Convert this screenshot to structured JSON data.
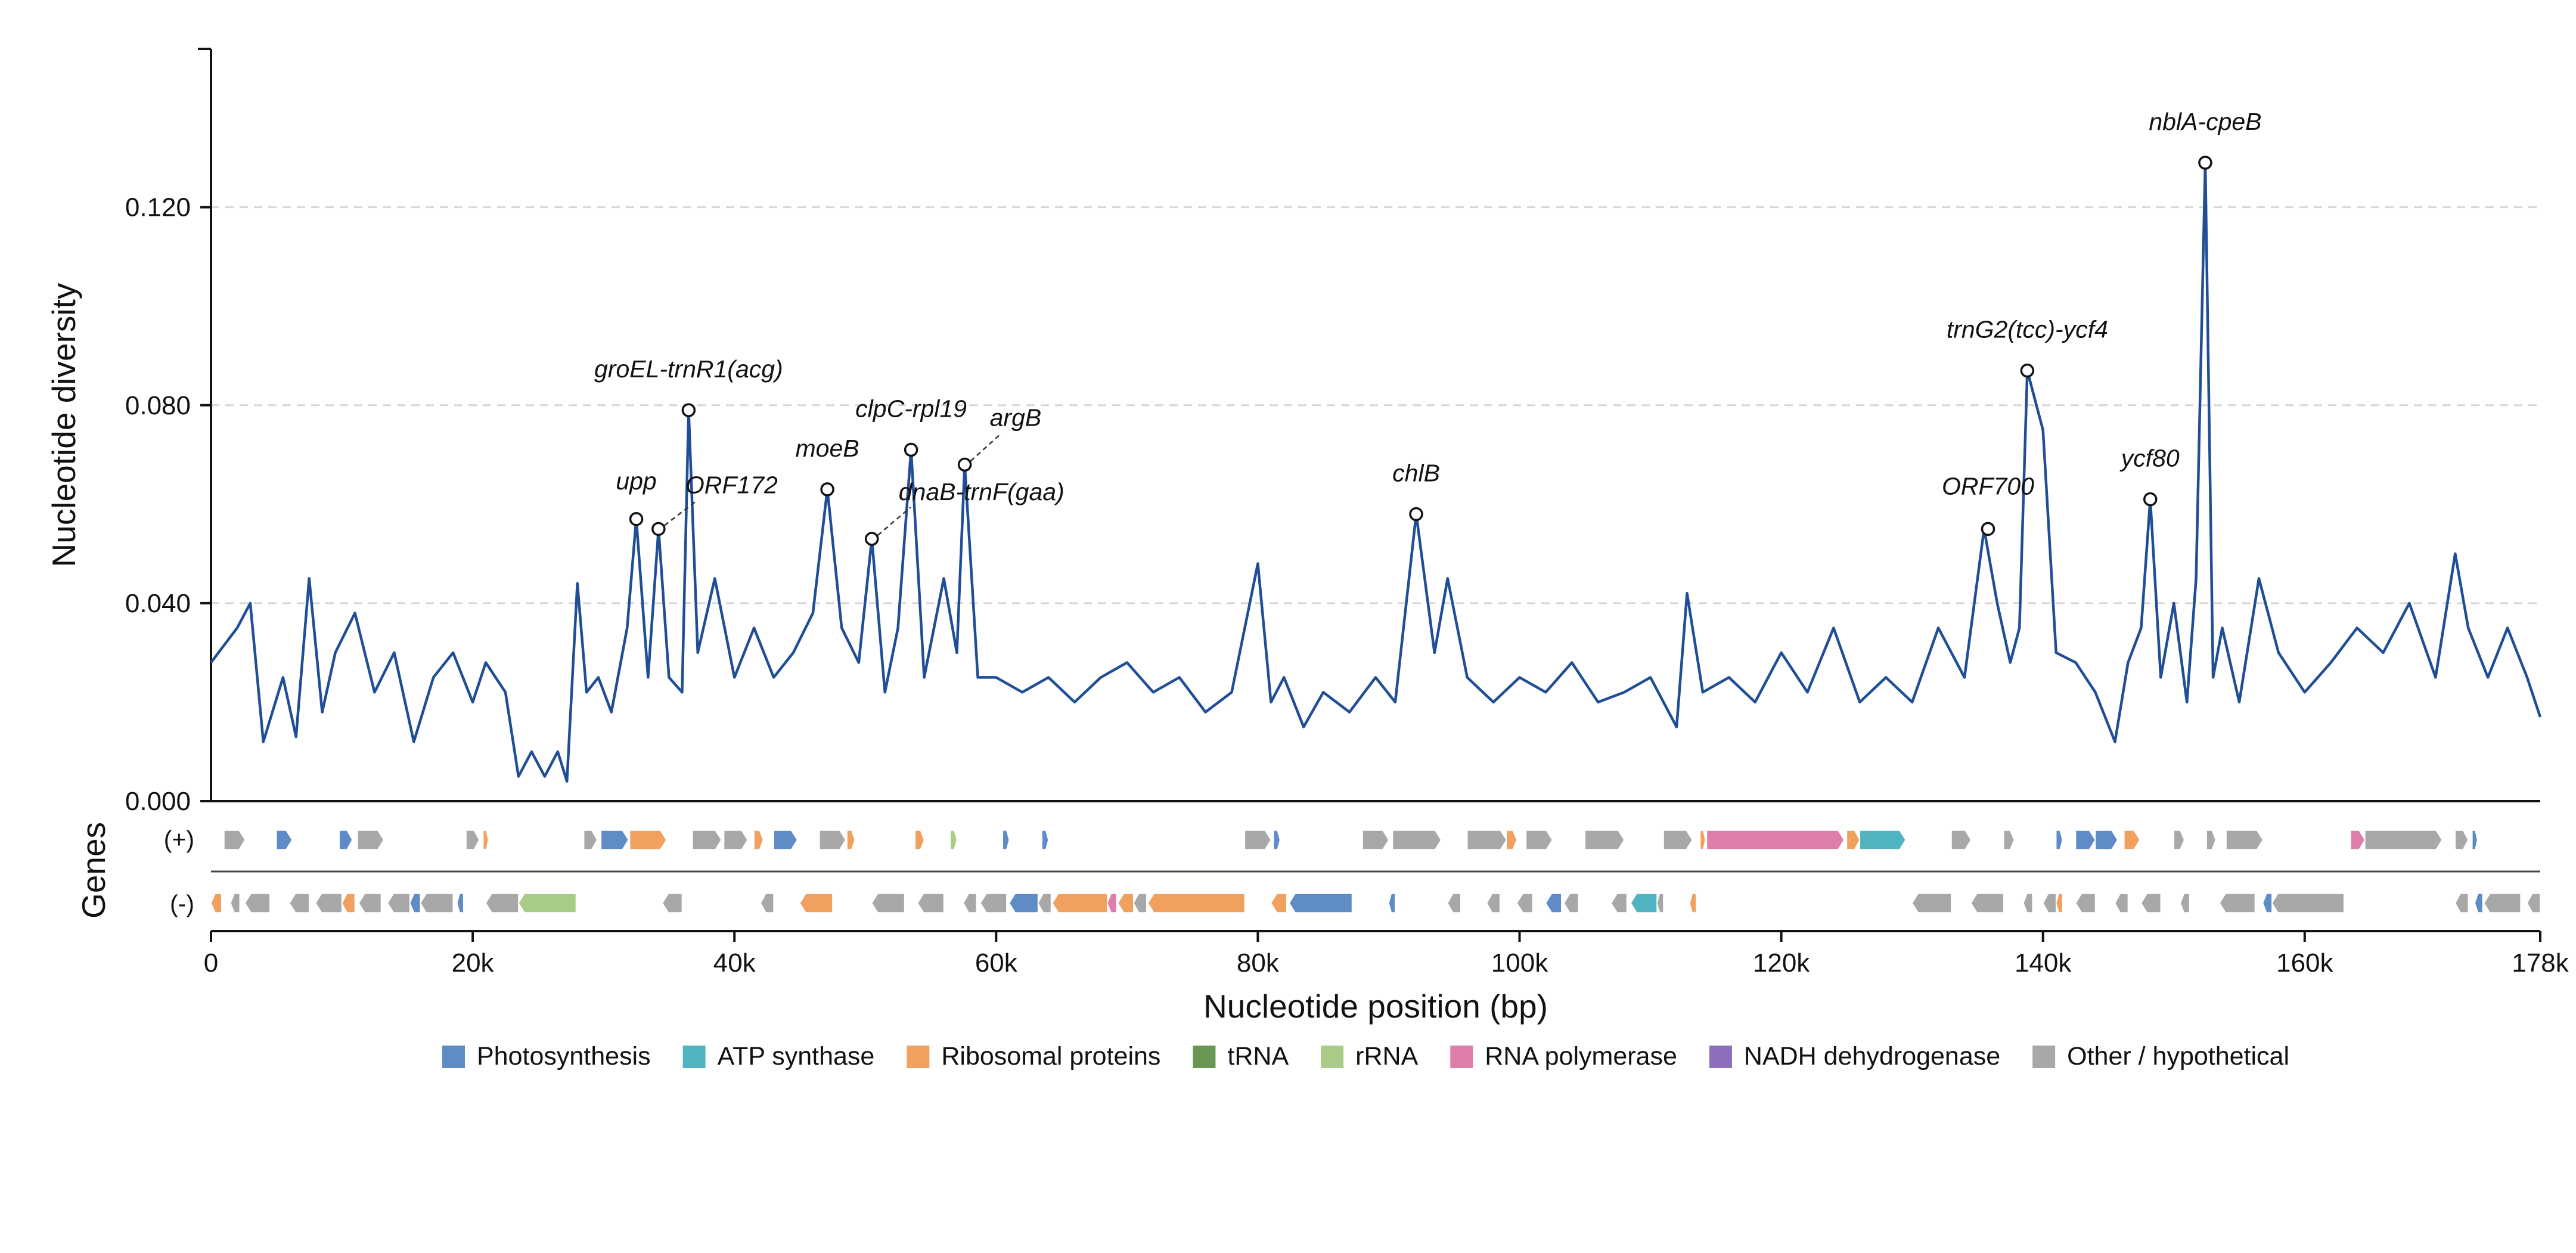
{
  "chart_data": {
    "type": "line",
    "xlabel": "Nucleotide position (bp)",
    "ylabel": "Nucleotide diversity",
    "xlim": [
      0,
      178000
    ],
    "ylim": [
      0,
      0.152
    ],
    "x_ticks": [
      0,
      20000,
      40000,
      60000,
      80000,
      100000,
      120000,
      140000,
      160000,
      178000
    ],
    "x_tick_labels": [
      "0",
      "20k",
      "40k",
      "60k",
      "80k",
      "100k",
      "120k",
      "140k",
      "160k",
      "178k"
    ],
    "y_ticks": [
      0.0,
      0.04,
      0.08,
      0.12
    ],
    "y_tick_labels": [
      "0.000",
      "0.040",
      "0.080",
      "0.120"
    ],
    "grid": "horizontal dashed",
    "line_color": "#1f4e97",
    "series": [
      {
        "x": [
          0,
          2000,
          3000,
          4000,
          5500,
          6500,
          7500,
          8500,
          9500,
          11000,
          12500,
          14000,
          15500,
          17000,
          18500,
          20000,
          21000,
          22500,
          23500,
          24500,
          25500,
          26500,
          27200,
          28000,
          28700,
          29600,
          30600,
          31800,
          32500,
          33400,
          34200,
          35000,
          36000,
          36500,
          37200,
          38500,
          40000,
          41500,
          43000,
          44500,
          46000,
          47100,
          48200,
          49500,
          50500,
          51500,
          52500,
          53500,
          54500,
          56000,
          57000,
          57600,
          58600,
          60000,
          62000,
          64000,
          66000,
          68000,
          70000,
          72000,
          74000,
          76000,
          78000,
          80000,
          81000,
          82000,
          83500,
          85000,
          87000,
          89000,
          90500,
          92100,
          93500,
          94500,
          96000,
          98000,
          100000,
          102000,
          104000,
          106000,
          108000,
          110000,
          112000,
          112800,
          114000,
          116000,
          118000,
          120000,
          122000,
          124000,
          126000,
          128000,
          130000,
          132000,
          134000,
          135500,
          136500,
          137500,
          138200,
          138800,
          139500,
          140000,
          141000,
          142500,
          144000,
          145500,
          146500,
          147500,
          148200,
          149000,
          150000,
          151000,
          151700,
          152400,
          153000,
          153700,
          155000,
          156500,
          158000,
          160000,
          162000,
          164000,
          166000,
          168000,
          170000,
          171500,
          172500,
          174000,
          175500,
          177000,
          178000
        ],
        "y": [
          0.028,
          0.035,
          0.04,
          0.012,
          0.025,
          0.013,
          0.045,
          0.018,
          0.03,
          0.038,
          0.022,
          0.03,
          0.012,
          0.025,
          0.03,
          0.02,
          0.028,
          0.022,
          0.005,
          0.01,
          0.005,
          0.01,
          0.004,
          0.044,
          0.022,
          0.025,
          0.018,
          0.035,
          0.057,
          0.025,
          0.055,
          0.025,
          0.022,
          0.079,
          0.03,
          0.045,
          0.025,
          0.035,
          0.025,
          0.03,
          0.038,
          0.063,
          0.035,
          0.028,
          0.053,
          0.022,
          0.035,
          0.071,
          0.025,
          0.045,
          0.03,
          0.068,
          0.025,
          0.025,
          0.022,
          0.025,
          0.02,
          0.025,
          0.028,
          0.022,
          0.025,
          0.018,
          0.022,
          0.048,
          0.02,
          0.025,
          0.015,
          0.022,
          0.018,
          0.025,
          0.02,
          0.058,
          0.03,
          0.045,
          0.025,
          0.02,
          0.025,
          0.022,
          0.028,
          0.02,
          0.022,
          0.025,
          0.015,
          0.042,
          0.022,
          0.025,
          0.02,
          0.03,
          0.022,
          0.035,
          0.02,
          0.025,
          0.02,
          0.035,
          0.025,
          0.055,
          0.04,
          0.028,
          0.035,
          0.087,
          0.08,
          0.075,
          0.03,
          0.028,
          0.022,
          0.012,
          0.028,
          0.035,
          0.061,
          0.025,
          0.04,
          0.02,
          0.045,
          0.129,
          0.025,
          0.035,
          0.02,
          0.045,
          0.03,
          0.022,
          0.028,
          0.035,
          0.03,
          0.04,
          0.025,
          0.05,
          0.035,
          0.025,
          0.035,
          0.025,
          0.017
        ]
      }
    ],
    "peaks": [
      {
        "label": "upp",
        "x": 32500,
        "y": 0.057
      },
      {
        "label": "ORF172",
        "x": 34200,
        "y": 0.055
      },
      {
        "label": "groEL-trnR1(acg)",
        "x": 36500,
        "y": 0.079
      },
      {
        "label": "moeB",
        "x": 47100,
        "y": 0.063
      },
      {
        "label": "dnaB-trnF(gaa)",
        "x": 50500,
        "y": 0.053
      },
      {
        "label": "clpC-rpl19",
        "x": 53500,
        "y": 0.071
      },
      {
        "label": "argB",
        "x": 57600,
        "y": 0.068
      },
      {
        "label": "chlB",
        "x": 92100,
        "y": 0.058
      },
      {
        "label": "ORF700",
        "x": 135800,
        "y": 0.055
      },
      {
        "label": "trnG2(tcc)-ycf4",
        "x": 138800,
        "y": 0.087
      },
      {
        "label": "ycf80",
        "x": 148200,
        "y": 0.061
      },
      {
        "label": "nblA-cpeB",
        "x": 152400,
        "y": 0.129
      }
    ],
    "gene_track": {
      "title": "Genes",
      "strands": [
        "(+)",
        "(-)"
      ],
      "plus": [
        {
          "start": 1000,
          "end": 2600,
          "cat": "Other / hypothetical"
        },
        {
          "start": 5000,
          "end": 6200,
          "cat": "Photosynthesis"
        },
        {
          "start": 9800,
          "end": 10800,
          "cat": "Photosynthesis"
        },
        {
          "start": 11200,
          "end": 13200,
          "cat": "Other / hypothetical"
        },
        {
          "start": 19500,
          "end": 20500,
          "cat": "Other / hypothetical"
        },
        {
          "start": 20800,
          "end": 21200,
          "cat": "Ribosomal proteins"
        },
        {
          "start": 28500,
          "end": 29500,
          "cat": "Other / hypothetical"
        },
        {
          "start": 29800,
          "end": 31900,
          "cat": "Photosynthesis"
        },
        {
          "start": 32000,
          "end": 34800,
          "cat": "Ribosomal proteins"
        },
        {
          "start": 36800,
          "end": 39000,
          "cat": "Other / hypothetical"
        },
        {
          "start": 39200,
          "end": 41000,
          "cat": "Other / hypothetical"
        },
        {
          "start": 41500,
          "end": 42200,
          "cat": "Ribosomal proteins"
        },
        {
          "start": 43000,
          "end": 44800,
          "cat": "Photosynthesis"
        },
        {
          "start": 46500,
          "end": 48500,
          "cat": "Other / hypothetical"
        },
        {
          "start": 48600,
          "end": 49200,
          "cat": "Ribosomal proteins"
        },
        {
          "start": 53800,
          "end": 54500,
          "cat": "Ribosomal proteins"
        },
        {
          "start": 56500,
          "end": 57000,
          "cat": "rRNA"
        },
        {
          "start": 60500,
          "end": 61000,
          "cat": "Photosynthesis"
        },
        {
          "start": 63500,
          "end": 64000,
          "cat": "Photosynthesis"
        },
        {
          "start": 79000,
          "end": 81000,
          "cat": "Other / hypothetical"
        },
        {
          "start": 81200,
          "end": 81700,
          "cat": "Photosynthesis"
        },
        {
          "start": 88000,
          "end": 90000,
          "cat": "Other / hypothetical"
        },
        {
          "start": 90300,
          "end": 94000,
          "cat": "Other / hypothetical"
        },
        {
          "start": 96000,
          "end": 99000,
          "cat": "Other / hypothetical"
        },
        {
          "start": 99000,
          "end": 99800,
          "cat": "Ribosomal proteins"
        },
        {
          "start": 100500,
          "end": 102500,
          "cat": "Other / hypothetical"
        },
        {
          "start": 105000,
          "end": 108000,
          "cat": "Other / hypothetical"
        },
        {
          "start": 111000,
          "end": 113200,
          "cat": "Other / hypothetical"
        },
        {
          "start": 113800,
          "end": 114200,
          "cat": "Ribosomal proteins"
        },
        {
          "start": 114300,
          "end": 124800,
          "cat": "RNA polymerase"
        },
        {
          "start": 125000,
          "end": 126000,
          "cat": "Ribosomal proteins"
        },
        {
          "start": 126000,
          "end": 129500,
          "cat": "ATP synthase"
        },
        {
          "start": 133000,
          "end": 134500,
          "cat": "Other / hypothetical"
        },
        {
          "start": 137000,
          "end": 137800,
          "cat": "Other / hypothetical"
        },
        {
          "start": 141000,
          "end": 141500,
          "cat": "Photosynthesis"
        },
        {
          "start": 142500,
          "end": 144000,
          "cat": "Photosynthesis"
        },
        {
          "start": 144000,
          "end": 145700,
          "cat": "Photosynthesis"
        },
        {
          "start": 146200,
          "end": 147400,
          "cat": "Ribosomal proteins"
        },
        {
          "start": 150000,
          "end": 150800,
          "cat": "Other / hypothetical"
        },
        {
          "start": 152500,
          "end": 153200,
          "cat": "Other / hypothetical"
        },
        {
          "start": 154000,
          "end": 156800,
          "cat": "Other / hypothetical"
        },
        {
          "start": 163500,
          "end": 164600,
          "cat": "RNA polymerase"
        },
        {
          "start": 164600,
          "end": 170500,
          "cat": "Other / hypothetical"
        },
        {
          "start": 171500,
          "end": 172500,
          "cat": "Other / hypothetical"
        },
        {
          "start": 172800,
          "end": 173200,
          "cat": "Photosynthesis"
        }
      ],
      "minus": [
        {
          "start": 0,
          "end": 800,
          "cat": "Ribosomal proteins"
        },
        {
          "start": 1500,
          "end": 2200,
          "cat": "Other / hypothetical"
        },
        {
          "start": 2600,
          "end": 4500,
          "cat": "Other / hypothetical"
        },
        {
          "start": 6000,
          "end": 7500,
          "cat": "Other / hypothetical"
        },
        {
          "start": 8000,
          "end": 10000,
          "cat": "Other / hypothetical"
        },
        {
          "start": 10000,
          "end": 11000,
          "cat": "Ribosomal proteins"
        },
        {
          "start": 11300,
          "end": 13000,
          "cat": "Other / hypothetical"
        },
        {
          "start": 13500,
          "end": 15200,
          "cat": "Other / hypothetical"
        },
        {
          "start": 15200,
          "end": 16000,
          "cat": "Photosynthesis"
        },
        {
          "start": 16000,
          "end": 18500,
          "cat": "Other / hypothetical"
        },
        {
          "start": 18800,
          "end": 19300,
          "cat": "Photosynthesis"
        },
        {
          "start": 21000,
          "end": 23500,
          "cat": "Other / hypothetical"
        },
        {
          "start": 23500,
          "end": 27900,
          "cat": "rRNA"
        },
        {
          "start": 34500,
          "end": 36000,
          "cat": "Other / hypothetical"
        },
        {
          "start": 42000,
          "end": 43000,
          "cat": "Other / hypothetical"
        },
        {
          "start": 45000,
          "end": 47500,
          "cat": "Ribosomal proteins"
        },
        {
          "start": 50500,
          "end": 53000,
          "cat": "Other / hypothetical"
        },
        {
          "start": 54000,
          "end": 56000,
          "cat": "Other / hypothetical"
        },
        {
          "start": 57500,
          "end": 58500,
          "cat": "Other / hypothetical"
        },
        {
          "start": 58800,
          "end": 60800,
          "cat": "Other / hypothetical"
        },
        {
          "start": 61000,
          "end": 63200,
          "cat": "Photosynthesis"
        },
        {
          "start": 63200,
          "end": 64200,
          "cat": "Other / hypothetical"
        },
        {
          "start": 64300,
          "end": 68500,
          "cat": "Ribosomal proteins"
        },
        {
          "start": 68500,
          "end": 69200,
          "cat": "RNA polymerase"
        },
        {
          "start": 69300,
          "end": 70500,
          "cat": "Ribosomal proteins"
        },
        {
          "start": 70500,
          "end": 71500,
          "cat": "Other / hypothetical"
        },
        {
          "start": 71600,
          "end": 79000,
          "cat": "Ribosomal proteins"
        },
        {
          "start": 81000,
          "end": 82200,
          "cat": "Ribosomal proteins"
        },
        {
          "start": 82400,
          "end": 87200,
          "cat": "Photosynthesis"
        },
        {
          "start": 90000,
          "end": 90500,
          "cat": "Photosynthesis"
        },
        {
          "start": 94500,
          "end": 95500,
          "cat": "Other / hypothetical"
        },
        {
          "start": 97500,
          "end": 98500,
          "cat": "Other / hypothetical"
        },
        {
          "start": 99800,
          "end": 101000,
          "cat": "Other / hypothetical"
        },
        {
          "start": 102000,
          "end": 103200,
          "cat": "Photosynthesis"
        },
        {
          "start": 103400,
          "end": 104500,
          "cat": "Other / hypothetical"
        },
        {
          "start": 107000,
          "end": 108200,
          "cat": "Other / hypothetical"
        },
        {
          "start": 108500,
          "end": 110500,
          "cat": "ATP synthase"
        },
        {
          "start": 110500,
          "end": 111000,
          "cat": "Other / hypothetical"
        },
        {
          "start": 113000,
          "end": 113500,
          "cat": "Ribosomal proteins"
        },
        {
          "start": 130000,
          "end": 133000,
          "cat": "Other / hypothetical"
        },
        {
          "start": 134500,
          "end": 137000,
          "cat": "Other / hypothetical"
        },
        {
          "start": 138500,
          "end": 139200,
          "cat": "Other / hypothetical"
        },
        {
          "start": 140000,
          "end": 141000,
          "cat": "Other / hypothetical"
        },
        {
          "start": 141000,
          "end": 141500,
          "cat": "Ribosomal proteins"
        },
        {
          "start": 142500,
          "end": 144000,
          "cat": "Other / hypothetical"
        },
        {
          "start": 145500,
          "end": 146500,
          "cat": "Other / hypothetical"
        },
        {
          "start": 147500,
          "end": 149000,
          "cat": "Other / hypothetical"
        },
        {
          "start": 150500,
          "end": 151200,
          "cat": "Other / hypothetical"
        },
        {
          "start": 153500,
          "end": 156200,
          "cat": "Other / hypothetical"
        },
        {
          "start": 156800,
          "end": 157500,
          "cat": "Photosynthesis"
        },
        {
          "start": 157500,
          "end": 163000,
          "cat": "Other / hypothetical"
        },
        {
          "start": 171500,
          "end": 172500,
          "cat": "Other / hypothetical"
        },
        {
          "start": 173000,
          "end": 173600,
          "cat": "Photosynthesis"
        },
        {
          "start": 173700,
          "end": 176500,
          "cat": "Other / hypothetical"
        },
        {
          "start": 177000,
          "end": 178000,
          "cat": "Other / hypothetical"
        }
      ]
    },
    "legend": {
      "placement": "bottom-center",
      "items": [
        {
          "label": "Photosynthesis",
          "color": "#5f8cc6"
        },
        {
          "label": "ATP synthase",
          "color": "#4fb3c0"
        },
        {
          "label": "Ribosomal proteins",
          "color": "#f0a160"
        },
        {
          "label": "tRNA",
          "color": "#6a9653"
        },
        {
          "label": "rRNA",
          "color": "#a9cc88"
        },
        {
          "label": "RNA polymerase",
          "color": "#de7eaa"
        },
        {
          "label": "NADH dehydrogenase",
          "color": "#8c6ebb"
        },
        {
          "label": "Other / hypothetical",
          "color": "#a8a8a8"
        }
      ]
    }
  }
}
